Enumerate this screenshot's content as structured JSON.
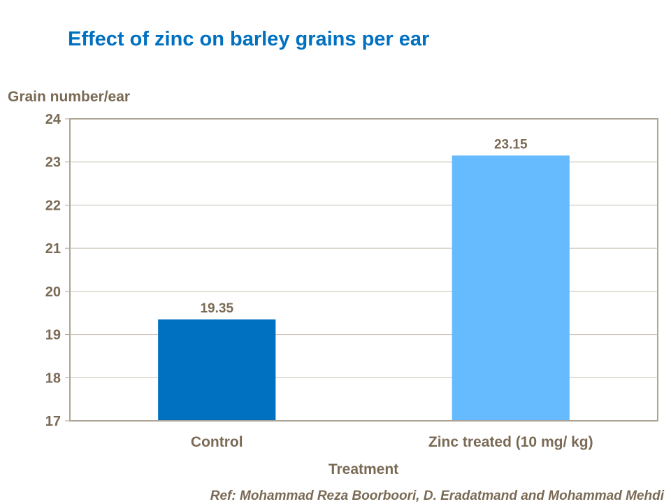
{
  "chart_data": {
    "type": "bar",
    "title": "Effect of zinc on barley grains per ear",
    "xlabel": "Treatment",
    "ylabel": "Grain number/ear",
    "categories": [
      "Control",
      "Zinc treated (10 mg/ kg)"
    ],
    "values": [
      19.35,
      23.15
    ],
    "data_labels": [
      "19.35",
      "23.15"
    ],
    "bar_colors": [
      "#0070C0",
      "#66BBFF"
    ],
    "ylim": [
      17,
      24
    ],
    "yticks": [
      17,
      18,
      19,
      20,
      21,
      22,
      23,
      24
    ],
    "grid": true,
    "legend": "none"
  },
  "colors": {
    "title": "#0070C0",
    "text": "#7A6A55",
    "grid": "#C8BFB2",
    "axis": "#ADA395"
  },
  "reference": "Ref: Mohammad Reza Boorboori,  D. Eradatmand and Mohammad Mehdi"
}
